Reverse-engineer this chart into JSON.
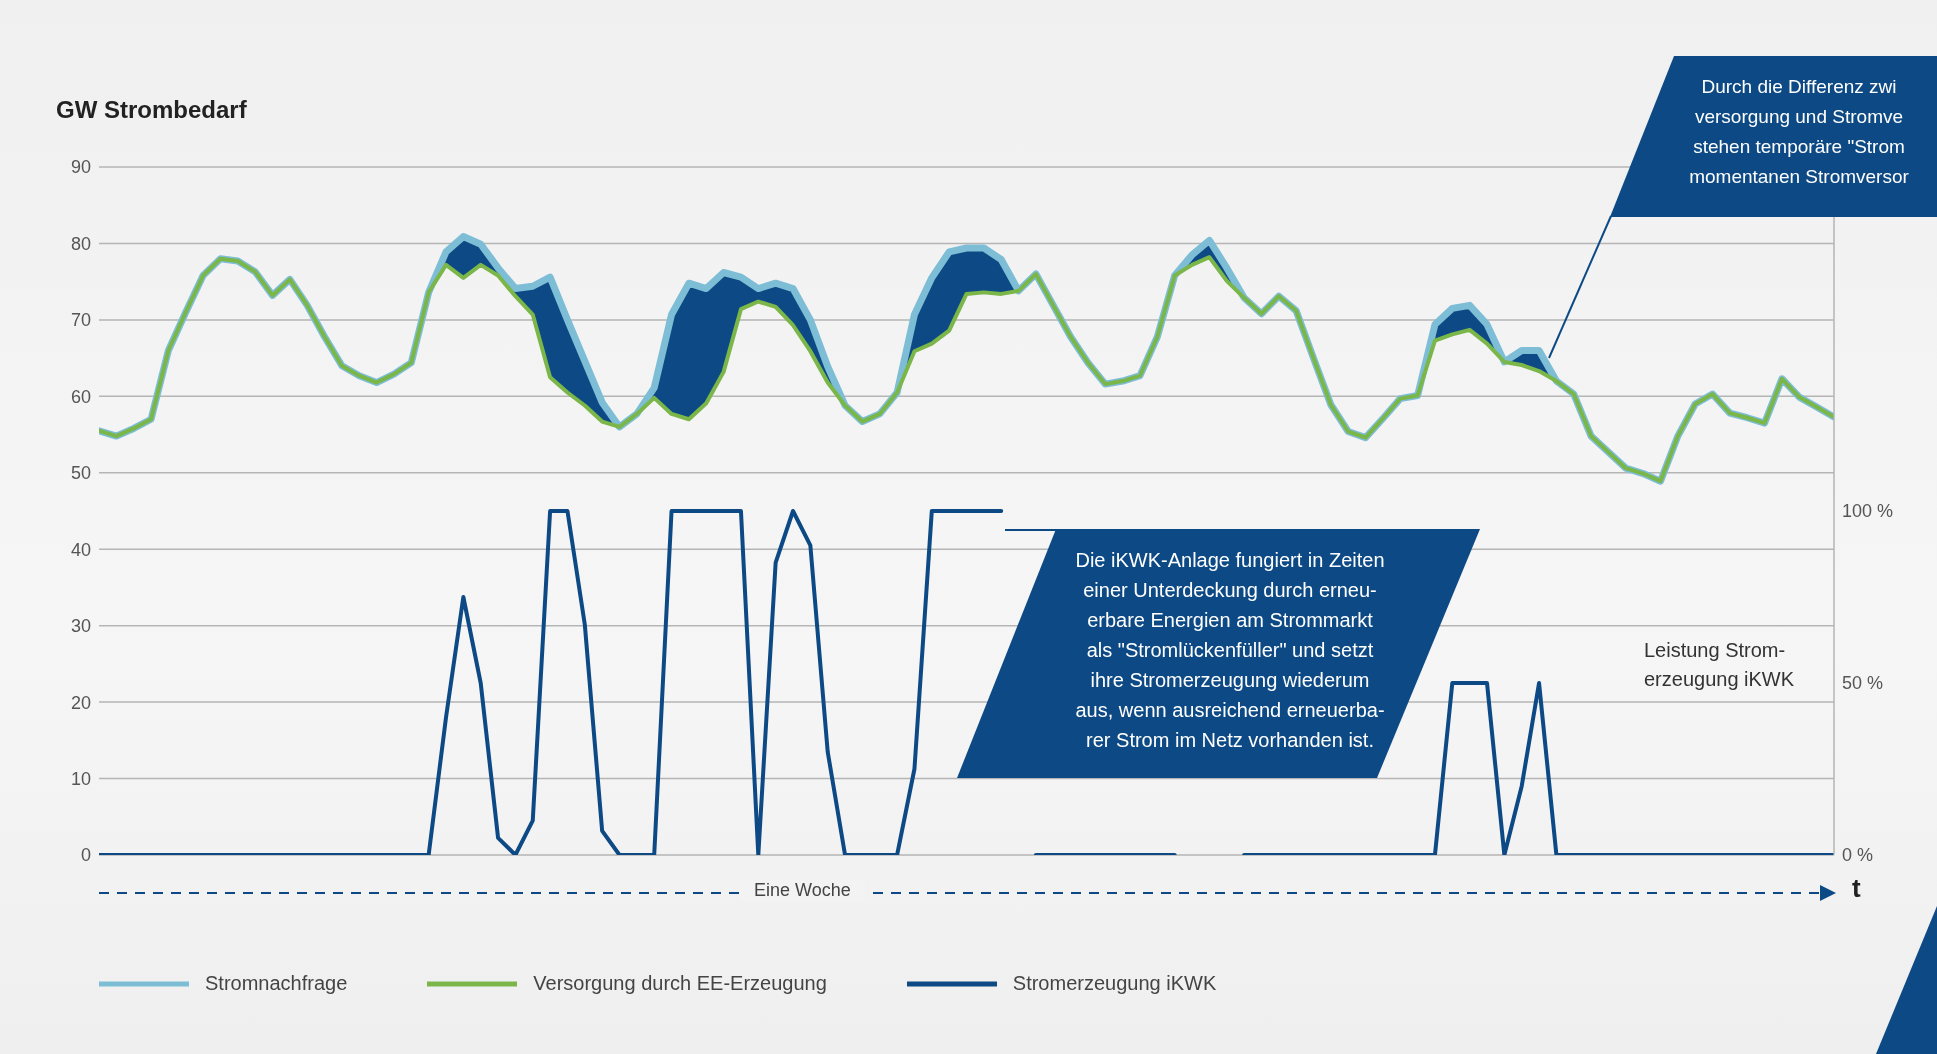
{
  "chart_data": {
    "type": "line",
    "ylabel": "GW Strombedarf",
    "xlabel": "Eine Woche",
    "y2label": "Leistung Strom-\nerzeugung iKWK",
    "categories": [
      null,
      null,
      null,
      null,
      null,
      null,
      null,
      null,
      null,
      null,
      null,
      null,
      null,
      null,
      null,
      null,
      null,
      null,
      null,
      null,
      null,
      null,
      null,
      null,
      null,
      null,
      null,
      null,
      null,
      null,
      null,
      null,
      null,
      null,
      null,
      null,
      null,
      null,
      null,
      null,
      null,
      null,
      null,
      null,
      null,
      null,
      null,
      null,
      null,
      null,
      null,
      null,
      null,
      null,
      null,
      null,
      null,
      null,
      null,
      null,
      null,
      null,
      null,
      null,
      null,
      null,
      null,
      null,
      null,
      null,
      null,
      null,
      null,
      null,
      null,
      null,
      null,
      null,
      null,
      null,
      null,
      null,
      null,
      null,
      null,
      null,
      null,
      null,
      null,
      null,
      null,
      null,
      null,
      null,
      null,
      null,
      null,
      null,
      null,
      null,
      null
    ],
    "series": [
      {
        "name": "Stromnachfrage",
        "color": "#7dbdd6",
        "lower": [
          null,
          null,
          null,
          null,
          null,
          null,
          null,
          null,
          null,
          null,
          null,
          null,
          null,
          null,
          null,
          null,
          null,
          null,
          null,
          73.6,
          77.2,
          75.5,
          77.2,
          75.8,
          73.1,
          70.7,
          62.5,
          60.5,
          58.8,
          56.7,
          56.0,
          57.7,
          59.8,
          57.7,
          57.0,
          59.1,
          63.2,
          71.4,
          72.4,
          71.7,
          69.3,
          65.9,
          61.8,
          58.8,
          null,
          null,
          60.5,
          65.9,
          66.9,
          68.6,
          73.4,
          73.6,
          73.4,
          73.8,
          null,
          null,
          null,
          null,
          null,
          null,
          null,
          67.8,
          75.8,
          77.2,
          78.2,
          75.1,
          72.9,
          null,
          null,
          null,
          null,
          null,
          null,
          null,
          null,
          null,
          60.1,
          67.3,
          68.1,
          68.7,
          66.9,
          64.5,
          64.1,
          63.3,
          62.0,
          null,
          null,
          null,
          null,
          null,
          null,
          null,
          null,
          null,
          null,
          null,
          null,
          null,
          null,
          null,
          null
        ],
        "upper": [
          null,
          null,
          null,
          null,
          null,
          null,
          null,
          null,
          null,
          null,
          null,
          null,
          null,
          null,
          null,
          null,
          null,
          null,
          null,
          73.6,
          78.9,
          80.9,
          79.9,
          76.8,
          74.1,
          74.4,
          75.6,
          70.0,
          64.6,
          59.2,
          56.0,
          57.7,
          61.1,
          70.7,
          74.8,
          74.1,
          76.2,
          75.6,
          74.1,
          74.8,
          74.1,
          70.0,
          63.9,
          58.8,
          null,
          null,
          60.5,
          70.7,
          75.5,
          78.9,
          79.4,
          79.4,
          77.9,
          73.8,
          null,
          null,
          null,
          null,
          null,
          null,
          null,
          67.8,
          75.8,
          78.5,
          80.4,
          76.8,
          72.9,
          null,
          null,
          null,
          null,
          null,
          null,
          null,
          null,
          null,
          60.1,
          69.4,
          71.5,
          71.9,
          69.4,
          64.5,
          66.0,
          66.0,
          62.0,
          null,
          null,
          null,
          null,
          null,
          null,
          null,
          null,
          null,
          null,
          null,
          null,
          null,
          null,
          null,
          null
        ],
        "values": [
          55.5,
          54.8,
          55.8,
          57.0,
          66.0,
          71.0,
          75.8,
          78.0,
          77.7,
          76.3,
          73.2,
          75.3,
          71.9,
          67.8,
          64.0,
          62.7,
          61.8,
          62.9,
          64.4,
          73.6,
          78.9,
          80.9,
          79.9,
          76.8,
          74.1,
          74.4,
          75.6,
          70.0,
          64.6,
          59.2,
          56.0,
          57.7,
          61.1,
          70.7,
          74.8,
          74.1,
          76.2,
          75.6,
          74.1,
          74.8,
          74.1,
          70.0,
          63.9,
          58.8,
          56.7,
          57.7,
          60.5,
          70.7,
          75.5,
          78.9,
          79.4,
          79.4,
          77.9,
          73.8,
          76.0,
          71.9,
          67.8,
          64.4,
          61.6,
          62.0,
          62.7,
          67.8,
          75.8,
          78.5,
          80.4,
          76.8,
          72.9,
          70.8,
          73.1,
          71.2,
          65.0,
          58.9,
          55.4,
          54.6,
          57.1,
          59.7,
          60.1,
          69.4,
          71.5,
          71.9,
          69.4,
          64.5,
          66.0,
          66.0,
          62.0,
          60.3,
          54.8,
          52.7,
          50.6,
          49.9,
          48.9,
          54.8,
          59.0,
          60.3,
          57.8,
          57.2,
          56.5,
          62.3,
          59.9,
          58.6,
          57.3
        ]
      },
      {
        "name": "Versorgung durch EE-Erzeugung",
        "color": "#7ab648",
        "values": [
          55.5,
          54.8,
          55.8,
          57.0,
          66.0,
          71.0,
          75.8,
          78.0,
          77.7,
          76.3,
          73.2,
          75.3,
          71.9,
          67.8,
          64.0,
          62.7,
          61.8,
          62.9,
          64.4,
          73.6,
          77.2,
          75.5,
          77.2,
          75.8,
          73.1,
          70.7,
          62.5,
          60.5,
          58.8,
          56.7,
          56.0,
          57.7,
          59.8,
          57.7,
          57.0,
          59.1,
          63.2,
          71.4,
          72.4,
          71.7,
          69.3,
          65.9,
          61.8,
          58.8,
          56.7,
          57.7,
          60.5,
          65.9,
          66.9,
          68.6,
          73.4,
          73.6,
          73.4,
          73.8,
          76.0,
          71.9,
          67.8,
          64.4,
          61.6,
          62.0,
          62.7,
          67.8,
          75.8,
          77.2,
          78.2,
          75.1,
          72.9,
          70.8,
          73.1,
          71.2,
          65.0,
          58.9,
          55.4,
          54.6,
          57.1,
          59.7,
          60.1,
          67.3,
          68.1,
          68.7,
          66.9,
          64.5,
          64.1,
          63.3,
          62.0,
          60.3,
          54.8,
          52.7,
          50.6,
          49.9,
          48.9,
          54.8,
          59.0,
          60.3,
          57.8,
          57.2,
          56.5,
          62.3,
          59.9,
          58.6,
          57.3
        ]
      },
      {
        "name": "Stromerzeugung iKWK",
        "color": "#0d4a85",
        "axis": "y2",
        "values": [
          0,
          0,
          0,
          0,
          0,
          0,
          0,
          0,
          0,
          0,
          0,
          0,
          0,
          0,
          0,
          0,
          0,
          0,
          0,
          0,
          40,
          75,
          50,
          5,
          0,
          10,
          100,
          100,
          67,
          7,
          0,
          0,
          0,
          100,
          100,
          100,
          100,
          100,
          0,
          85,
          100,
          90,
          30,
          0,
          0,
          0,
          0,
          25,
          100,
          100,
          100,
          100,
          100,
          null,
          0,
          0,
          0,
          0,
          0,
          0,
          0,
          0,
          0,
          null,
          null,
          null,
          0,
          0,
          0,
          0,
          0,
          0,
          0,
          0,
          0,
          0,
          0,
          0,
          50,
          50,
          50,
          0,
          20,
          50,
          0,
          0,
          0,
          0,
          0,
          0,
          0,
          0,
          0,
          0,
          0,
          0,
          0,
          0,
          0,
          0,
          0
        ]
      }
    ],
    "ylim": [
      0,
      90
    ],
    "yticks": [
      0,
      10,
      20,
      30,
      40,
      50,
      60,
      70,
      80,
      90
    ],
    "y2lim": [
      0,
      200
    ],
    "y2ticks": [
      {
        "value": 0,
        "label": "0 %"
      },
      {
        "value": 50,
        "label": "50 %"
      },
      {
        "value": 100,
        "label": "100 %"
      }
    ],
    "grid": "y",
    "legend": "bottom",
    "annotations": [
      "Die iKWK-Anlage fungiert in Zeiten\neiner Unterdeckung durch erneu-\nerbare Energien am Strommarkt\nals \"Stromlückenfüller\" und setzt\nihre Stromerzeugung wiederum\naus, wenn ausreichend erneuerba-\nrer Strom im Netz vorhanden ist.",
      "Durch die Differenz zwi\nversorgung und Stromve\nstehen temporäre \"Strom\nmomentanen Stromversor",
      "t"
    ]
  }
}
